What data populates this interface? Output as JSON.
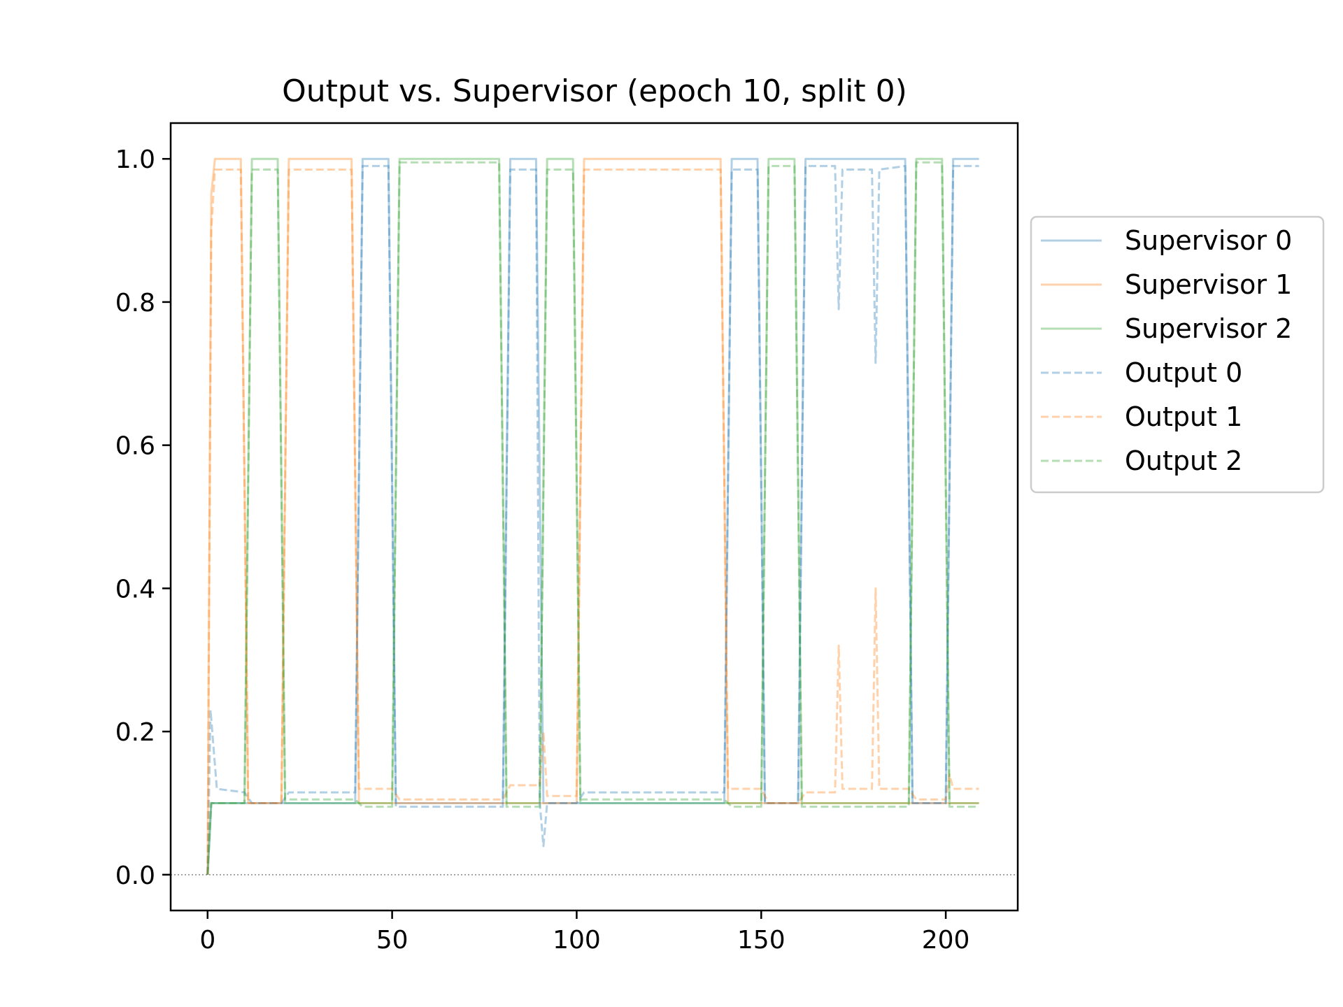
{
  "chart_data": {
    "type": "line",
    "title": "Output vs. Supervisor (epoch 10, split 0)",
    "xlabel": "",
    "ylabel": "",
    "xlim": [
      -10,
      219.5
    ],
    "ylim": [
      -0.05,
      1.05
    ],
    "xticks": [
      0,
      50,
      100,
      150,
      200
    ],
    "yticks": [
      0.0,
      0.2,
      0.4,
      0.6,
      0.8,
      1.0
    ],
    "xtick_labels": [
      "0",
      "50",
      "100",
      "150",
      "200"
    ],
    "ytick_labels": [
      "0.0",
      "0.2",
      "0.4",
      "0.6",
      "0.8",
      "1.0"
    ],
    "reference_line": {
      "y": 0.0,
      "style": "dotted",
      "color": "#888888"
    },
    "grid": false,
    "legend_position": "outside-right",
    "series": [
      {
        "name": "Supervisor 0",
        "color": "#1f77b4",
        "dash": "solid",
        "points": [
          [
            0,
            0
          ],
          [
            1,
            0.1
          ],
          [
            40,
            0.1
          ],
          [
            42,
            1.0
          ],
          [
            49,
            1.0
          ],
          [
            51,
            0.1
          ],
          [
            80,
            0.1
          ],
          [
            82,
            1.0
          ],
          [
            89,
            1.0
          ],
          [
            91,
            0.1
          ],
          [
            140,
            0.1
          ],
          [
            142,
            1.0
          ],
          [
            149,
            1.0
          ],
          [
            151,
            0.1
          ],
          [
            160,
            0.1
          ],
          [
            162,
            1.0
          ],
          [
            189,
            1.0
          ],
          [
            191,
            0.1
          ],
          [
            200,
            0.1
          ],
          [
            202,
            1.0
          ],
          [
            209,
            1.0
          ]
        ]
      },
      {
        "name": "Supervisor 1",
        "color": "#ff7f0e",
        "dash": "solid",
        "points": [
          [
            0,
            0
          ],
          [
            1,
            0.95
          ],
          [
            2,
            1.0
          ],
          [
            9,
            1.0
          ],
          [
            11,
            0.1
          ],
          [
            20,
            0.1
          ],
          [
            22,
            1.0
          ],
          [
            39,
            1.0
          ],
          [
            41,
            0.1
          ],
          [
            100,
            0.1
          ],
          [
            102,
            1.0
          ],
          [
            139,
            1.0
          ],
          [
            141,
            0.1
          ],
          [
            209,
            0.1
          ]
        ]
      },
      {
        "name": "Supervisor 2",
        "color": "#2ca02c",
        "dash": "solid",
        "points": [
          [
            0,
            0
          ],
          [
            1,
            0.1
          ],
          [
            10,
            0.1
          ],
          [
            12,
            1.0
          ],
          [
            19,
            1.0
          ],
          [
            21,
            0.1
          ],
          [
            50,
            0.1
          ],
          [
            52,
            1.0
          ],
          [
            79,
            1.0
          ],
          [
            81,
            0.1
          ],
          [
            90,
            0.1
          ],
          [
            92,
            1.0
          ],
          [
            99,
            1.0
          ],
          [
            101,
            0.1
          ],
          [
            150,
            0.1
          ],
          [
            152,
            1.0
          ],
          [
            159,
            1.0
          ],
          [
            161,
            0.1
          ],
          [
            190,
            0.1
          ],
          [
            192,
            1.0
          ],
          [
            199,
            1.0
          ],
          [
            201,
            0.1
          ],
          [
            209,
            0.1
          ]
        ]
      },
      {
        "name": "Output 0",
        "color": "#1f77b4",
        "dash": "dashed",
        "points": [
          [
            0,
            0
          ],
          [
            0.8,
            0.23
          ],
          [
            2.5,
            0.12
          ],
          [
            10,
            0.115
          ],
          [
            12,
            0.1
          ],
          [
            20,
            0.1
          ],
          [
            22,
            0.115
          ],
          [
            40,
            0.115
          ],
          [
            42,
            0.99
          ],
          [
            49,
            0.99
          ],
          [
            51,
            0.095
          ],
          [
            80,
            0.095
          ],
          [
            82,
            0.985
          ],
          [
            89,
            0.985
          ],
          [
            90,
            0.1
          ],
          [
            91,
            0.04
          ],
          [
            92,
            0.1
          ],
          [
            100,
            0.1
          ],
          [
            102,
            0.115
          ],
          [
            140,
            0.115
          ],
          [
            142,
            0.985
          ],
          [
            149,
            0.985
          ],
          [
            151,
            0.1
          ],
          [
            160,
            0.1
          ],
          [
            162,
            0.99
          ],
          [
            170,
            0.99
          ],
          [
            171,
            0.79
          ],
          [
            172,
            0.985
          ],
          [
            180,
            0.985
          ],
          [
            181,
            0.715
          ],
          [
            182,
            0.985
          ],
          [
            189,
            0.99
          ],
          [
            191,
            0.1
          ],
          [
            200,
            0.1
          ],
          [
            202,
            0.99
          ],
          [
            209,
            0.99
          ]
        ]
      },
      {
        "name": "Output 1",
        "color": "#ff7f0e",
        "dash": "dashed",
        "points": [
          [
            0,
            0
          ],
          [
            1,
            0.9
          ],
          [
            2,
            0.985
          ],
          [
            9,
            0.985
          ],
          [
            11,
            0.1
          ],
          [
            20,
            0.1
          ],
          [
            22,
            0.985
          ],
          [
            39,
            0.985
          ],
          [
            41,
            0.12
          ],
          [
            50,
            0.12
          ],
          [
            52,
            0.105
          ],
          [
            80,
            0.105
          ],
          [
            82,
            0.125
          ],
          [
            90,
            0.125
          ],
          [
            91,
            0.2
          ],
          [
            92,
            0.11
          ],
          [
            100,
            0.11
          ],
          [
            102,
            0.985
          ],
          [
            139,
            0.985
          ],
          [
            141,
            0.12
          ],
          [
            150,
            0.12
          ],
          [
            152,
            0.1
          ],
          [
            160,
            0.1
          ],
          [
            162,
            0.115
          ],
          [
            170,
            0.115
          ],
          [
            171,
            0.32
          ],
          [
            172,
            0.12
          ],
          [
            180,
            0.12
          ],
          [
            181,
            0.4
          ],
          [
            182,
            0.12
          ],
          [
            190,
            0.12
          ],
          [
            192,
            0.105
          ],
          [
            200,
            0.105
          ],
          [
            201,
            0.14
          ],
          [
            202,
            0.12
          ],
          [
            209,
            0.12
          ]
        ]
      },
      {
        "name": "Output 2",
        "color": "#2ca02c",
        "dash": "dashed",
        "points": [
          [
            0,
            0
          ],
          [
            1,
            0.1
          ],
          [
            10,
            0.1
          ],
          [
            12,
            0.985
          ],
          [
            19,
            0.985
          ],
          [
            21,
            0.105
          ],
          [
            40,
            0.105
          ],
          [
            42,
            0.095
          ],
          [
            50,
            0.095
          ],
          [
            52,
            0.995
          ],
          [
            79,
            0.995
          ],
          [
            81,
            0.095
          ],
          [
            90,
            0.095
          ],
          [
            92,
            0.985
          ],
          [
            99,
            0.985
          ],
          [
            101,
            0.105
          ],
          [
            140,
            0.105
          ],
          [
            142,
            0.095
          ],
          [
            150,
            0.095
          ],
          [
            152,
            0.99
          ],
          [
            159,
            0.99
          ],
          [
            161,
            0.095
          ],
          [
            190,
            0.095
          ],
          [
            192,
            0.995
          ],
          [
            199,
            0.995
          ],
          [
            201,
            0.095
          ],
          [
            209,
            0.095
          ]
        ]
      }
    ]
  }
}
